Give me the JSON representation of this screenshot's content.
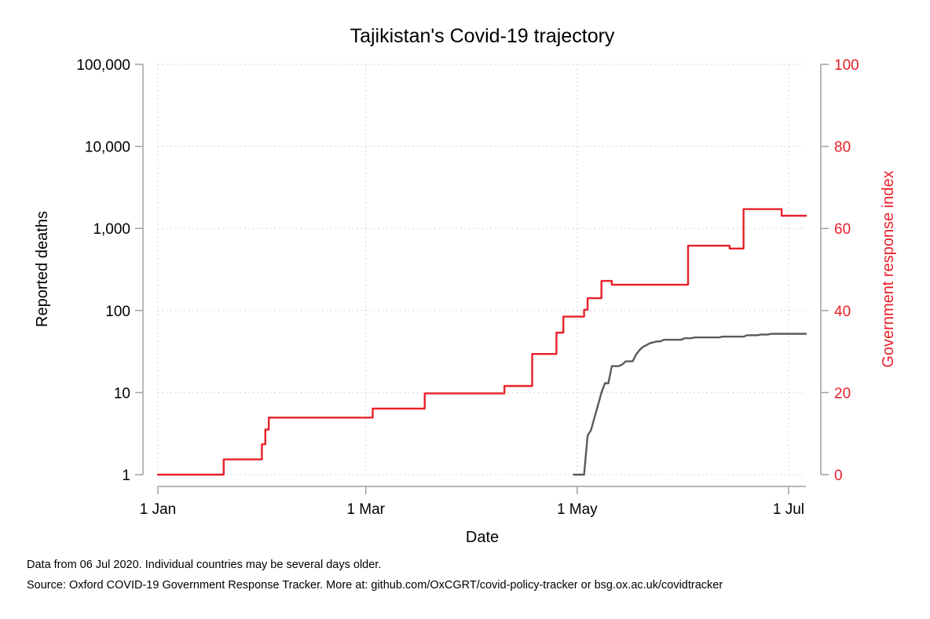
{
  "chart_data": {
    "type": "line",
    "title": "Tajikistan's Covid-19 trajectory",
    "xlabel": "Date",
    "ylabel_left": "Reported deaths",
    "ylabel_right": "Government response index",
    "x_ticks": [
      {
        "date": "2020-01-01",
        "label": "1 Jan"
      },
      {
        "date": "2020-03-01",
        "label": "1 Mar"
      },
      {
        "date": "2020-05-01",
        "label": "1 May"
      },
      {
        "date": "2020-07-01",
        "label": "1 Jul"
      }
    ],
    "xlim": [
      "2020-01-01",
      "2020-07-06"
    ],
    "left_axis": {
      "scale": "log",
      "ylim": [
        1,
        100000
      ],
      "ticks": [
        {
          "value": 1,
          "label": "1"
        },
        {
          "value": 10,
          "label": "10"
        },
        {
          "value": 100,
          "label": "100"
        },
        {
          "value": 1000,
          "label": "1,000"
        },
        {
          "value": 10000,
          "label": "10,000"
        },
        {
          "value": 100000,
          "label": "100,000"
        }
      ]
    },
    "right_axis": {
      "scale": "linear",
      "ylim": [
        0,
        100
      ],
      "ticks": [
        {
          "value": 0,
          "label": "0"
        },
        {
          "value": 20,
          "label": "20"
        },
        {
          "value": 40,
          "label": "40"
        },
        {
          "value": 60,
          "label": "60"
        },
        {
          "value": 80,
          "label": "80"
        },
        {
          "value": 100,
          "label": "100"
        }
      ],
      "color": "#e8202a"
    },
    "grid": true,
    "series": [
      {
        "axis": "left",
        "color": "#5a5a5a",
        "step": false,
        "points": [
          [
            "2020-04-30",
            1
          ],
          [
            "2020-05-03",
            1
          ],
          [
            "2020-05-04",
            3
          ],
          [
            "2020-05-05",
            3.5
          ],
          [
            "2020-05-06",
            5
          ],
          [
            "2020-05-07",
            7
          ],
          [
            "2020-05-08",
            10
          ],
          [
            "2020-05-09",
            13
          ],
          [
            "2020-05-10",
            13
          ],
          [
            "2020-05-11",
            21
          ],
          [
            "2020-05-12",
            21
          ],
          [
            "2020-05-13",
            21
          ],
          [
            "2020-05-14",
            22
          ],
          [
            "2020-05-15",
            24
          ],
          [
            "2020-05-16",
            24
          ],
          [
            "2020-05-17",
            24
          ],
          [
            "2020-05-18",
            29
          ],
          [
            "2020-05-19",
            33
          ],
          [
            "2020-05-20",
            36
          ],
          [
            "2020-05-21",
            38
          ],
          [
            "2020-05-22",
            40
          ],
          [
            "2020-05-23",
            41
          ],
          [
            "2020-05-24",
            42
          ],
          [
            "2020-05-25",
            42
          ],
          [
            "2020-05-26",
            44
          ],
          [
            "2020-05-27",
            44
          ],
          [
            "2020-05-31",
            44
          ],
          [
            "2020-06-01",
            46
          ],
          [
            "2020-06-03",
            46
          ],
          [
            "2020-06-04",
            47
          ],
          [
            "2020-06-11",
            47
          ],
          [
            "2020-06-12",
            48
          ],
          [
            "2020-06-18",
            48
          ],
          [
            "2020-06-19",
            50
          ],
          [
            "2020-06-22",
            50
          ],
          [
            "2020-06-23",
            51
          ],
          [
            "2020-06-25",
            51
          ],
          [
            "2020-06-26",
            52
          ],
          [
            "2020-07-06",
            52
          ]
        ]
      },
      {
        "axis": "right",
        "color": "#e8202a",
        "step": true,
        "points": [
          [
            "2020-01-01",
            0
          ],
          [
            "2020-01-20",
            3.7
          ],
          [
            "2020-01-31",
            7.4
          ],
          [
            "2020-02-01",
            11
          ],
          [
            "2020-02-02",
            13.9
          ],
          [
            "2020-03-03",
            16.1
          ],
          [
            "2020-03-18",
            19.8
          ],
          [
            "2020-04-10",
            21.6
          ],
          [
            "2020-04-18",
            29.4
          ],
          [
            "2020-04-25",
            34.6
          ],
          [
            "2020-04-26",
            34.6
          ],
          [
            "2020-04-27",
            38.5
          ],
          [
            "2020-05-03",
            40.2
          ],
          [
            "2020-05-04",
            43
          ],
          [
            "2020-05-08",
            47.2
          ],
          [
            "2020-05-11",
            46.3
          ],
          [
            "2020-06-02",
            55.8
          ],
          [
            "2020-06-14",
            55.1
          ],
          [
            "2020-06-18",
            64.7
          ],
          [
            "2020-06-29",
            63.1
          ],
          [
            "2020-07-06",
            63.1
          ]
        ]
      }
    ]
  },
  "footnotes": {
    "line1": "Data from 06 Jul 2020. Individual countries may be several days older.",
    "line2": "Source: Oxford COVID-19 Government Response Tracker. More at: github.com/OxCGRT/covid-policy-tracker or bsg.ox.ac.uk/covidtracker"
  }
}
